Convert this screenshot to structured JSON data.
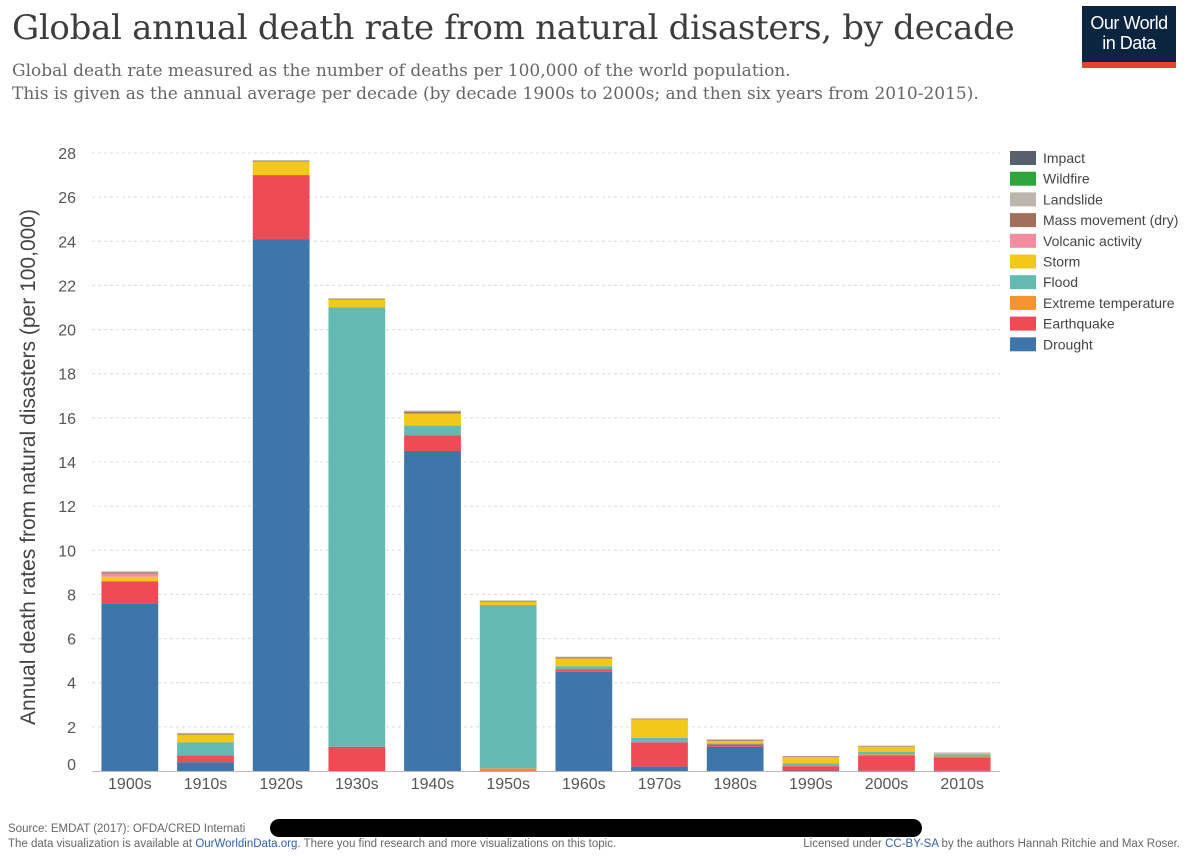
{
  "title": "Global annual death rate from natural disasters, by decade",
  "subtitle_line1": "Global death rate measured as the number of deaths per 100,000 of the world population.",
  "subtitle_line2": "This is given as the annual average per decade (by decade 1900s to 2000s; and then six years from 2010-2015).",
  "logo": {
    "line1": "Our World",
    "line2": "in Data"
  },
  "footer": {
    "source": "Source: EMDAT (2017): OFDA/CRED Internati",
    "line2_prefix": "The data visualization is available at ",
    "line2_link": "OurWorldinData.org",
    "line2_suffix": ". There you find research and more visualizations on this topic.",
    "license_prefix": "Licensed under ",
    "license_link": "CC-BY-SA",
    "license_suffix": " by the authors Hannah Ritchie and Max Roser."
  },
  "chart_data": {
    "type": "bar",
    "stacked": true,
    "title": "Global annual death rate from natural disasters, by decade",
    "ylabel": "Annual death rates from natural disasters (per 100,000)",
    "xlabel": "",
    "ylim": [
      0,
      28
    ],
    "yticks": [
      0,
      2,
      4,
      6,
      8,
      10,
      12,
      14,
      16,
      18,
      20,
      22,
      24,
      26,
      28
    ],
    "grid": true,
    "legend_position": "top-right",
    "categories": [
      "1900s",
      "1910s",
      "1920s",
      "1930s",
      "1940s",
      "1950s",
      "1960s",
      "1970s",
      "1980s",
      "1990s",
      "2000s",
      "2010s"
    ],
    "series": [
      {
        "name": "Drought",
        "color": "#3e75aa",
        "values": [
          7.6,
          0.4,
          24.1,
          0,
          14.5,
          0,
          4.5,
          0.2,
          1.1,
          0.02,
          0.01,
          0.01
        ]
      },
      {
        "name": "Earthquake",
        "color": "#ef4b57",
        "values": [
          1.0,
          0.3,
          2.9,
          1.1,
          0.7,
          0.02,
          0.1,
          1.1,
          0.1,
          0.2,
          0.7,
          0.6
        ]
      },
      {
        "name": "Extreme temperature",
        "color": "#f4932f",
        "values": [
          0,
          0,
          0,
          0,
          0,
          0.1,
          0,
          0,
          0,
          0.03,
          0.05,
          0.05
        ]
      },
      {
        "name": "Flood",
        "color": "#62bab3",
        "values": [
          0,
          0.6,
          0,
          19.9,
          0.45,
          7.4,
          0.15,
          0.2,
          0.05,
          0.1,
          0.1,
          0.1
        ]
      },
      {
        "name": "Storm",
        "color": "#f2c819",
        "values": [
          0.2,
          0.35,
          0.6,
          0.35,
          0.55,
          0.15,
          0.35,
          0.85,
          0.1,
          0.3,
          0.25,
          0.06
        ]
      },
      {
        "name": "Volcanic activity",
        "color": "#f48c9f",
        "values": [
          0.15,
          0,
          0,
          0,
          0,
          0,
          0,
          0,
          0.03,
          0,
          0,
          0
        ]
      },
      {
        "name": "Mass movement (dry)",
        "color": "#a0705a",
        "values": [
          0.05,
          0.03,
          0.03,
          0.02,
          0.08,
          0.03,
          0.05,
          0.02,
          0.03,
          0.01,
          0.01,
          0
        ]
      },
      {
        "name": "Landslide",
        "color": "#bdb6ad",
        "values": [
          0.05,
          0.05,
          0.05,
          0.05,
          0.05,
          0.03,
          0.03,
          0.02,
          0.03,
          0.02,
          0.03,
          0.02
        ]
      },
      {
        "name": "Wildfire",
        "color": "#2ea53a",
        "values": [
          0,
          0,
          0,
          0,
          0,
          0,
          0,
          0,
          0,
          0,
          0,
          0
        ]
      },
      {
        "name": "Impact",
        "color": "#58606e",
        "values": [
          0,
          0,
          0,
          0,
          0,
          0,
          0,
          0,
          0,
          0,
          0,
          0
        ]
      }
    ],
    "legend_order": [
      "Impact",
      "Wildfire",
      "Landslide",
      "Mass movement (dry)",
      "Volcanic activity",
      "Storm",
      "Flood",
      "Extreme temperature",
      "Earthquake",
      "Drought"
    ]
  }
}
